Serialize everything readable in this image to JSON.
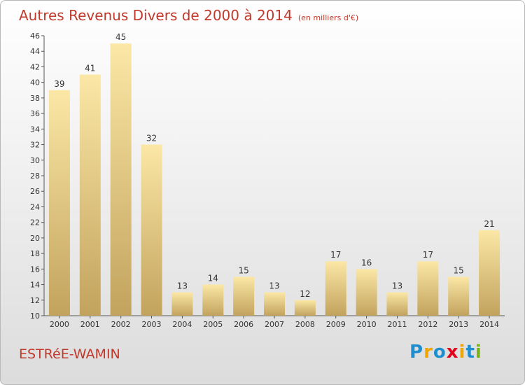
{
  "title": "Autres Revenus Divers de 2000 à 2014",
  "unit_note": "(en milliers d'€)",
  "location": "ESTRéE-WAMIN",
  "logo": {
    "letters": [
      "P",
      "r",
      "o",
      "x",
      "i",
      "t",
      "i"
    ],
    "colors": [
      "#1f8ecf",
      "#f0a500",
      "#1f8ecf",
      "#e4001b",
      "#f0a500",
      "#1f8ecf",
      "#7ab317"
    ]
  },
  "colors": {
    "bar_light": "#fbe7a6",
    "bar_dark": "#c2a35d",
    "title": "#c0392b"
  },
  "chart_data": {
    "type": "bar",
    "categories": [
      "2000",
      "2001",
      "2002",
      "2003",
      "2004",
      "2005",
      "2006",
      "2007",
      "2008",
      "2009",
      "2010",
      "2011",
      "2012",
      "2013",
      "2014"
    ],
    "values": [
      39,
      41,
      45,
      32,
      13,
      14,
      15,
      13,
      12,
      17,
      16,
      13,
      17,
      15,
      21
    ],
    "ylim": [
      10,
      46
    ],
    "yticks": [
      10,
      12,
      14,
      16,
      18,
      20,
      22,
      24,
      26,
      28,
      30,
      32,
      34,
      36,
      38,
      40,
      42,
      44,
      46
    ],
    "grid": false,
    "xlabel": "",
    "ylabel": ""
  }
}
